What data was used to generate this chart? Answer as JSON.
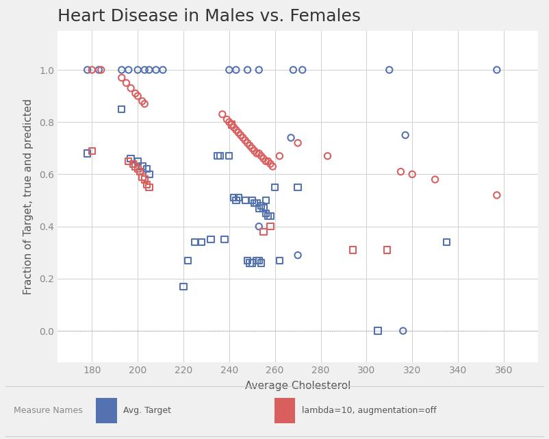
{
  "title": "Heart Disease in Males vs. Females",
  "xlabel": "Average Cholesterol",
  "ylabel": "Fraction of Target, true and predicted",
  "xlim": [
    165,
    375
  ],
  "ylim": [
    -0.12,
    1.15
  ],
  "xticks": [
    180,
    200,
    220,
    240,
    260,
    280,
    300,
    320,
    340,
    360
  ],
  "yticks": [
    0.0,
    0.2,
    0.4,
    0.6,
    0.8,
    1.0
  ],
  "bg_color": "#f0f0f0",
  "plot_bg_color": "#ffffff",
  "blue_color": "#5572b0",
  "red_color": "#d95f5f",
  "blue_circles": [
    [
      178,
      1.0
    ],
    [
      183,
      1.0
    ],
    [
      193,
      1.0
    ],
    [
      196,
      1.0
    ],
    [
      200,
      1.0
    ],
    [
      203,
      1.0
    ],
    [
      205,
      1.0
    ],
    [
      208,
      1.0
    ],
    [
      211,
      1.0
    ],
    [
      240,
      1.0
    ],
    [
      243,
      1.0
    ],
    [
      248,
      1.0
    ],
    [
      253,
      1.0
    ],
    [
      268,
      1.0
    ],
    [
      272,
      1.0
    ],
    [
      310,
      1.0
    ],
    [
      357,
      1.0
    ],
    [
      267,
      0.74
    ],
    [
      317,
      0.75
    ],
    [
      253,
      0.4
    ],
    [
      270,
      0.29
    ],
    [
      316,
      0.0
    ]
  ],
  "blue_squares": [
    [
      178,
      0.68
    ],
    [
      193,
      0.85
    ],
    [
      197,
      0.66
    ],
    [
      200,
      0.65
    ],
    [
      202,
      0.63
    ],
    [
      204,
      0.62
    ],
    [
      205,
      0.6
    ],
    [
      220,
      0.17
    ],
    [
      222,
      0.27
    ],
    [
      225,
      0.34
    ],
    [
      228,
      0.34
    ],
    [
      232,
      0.35
    ],
    [
      235,
      0.67
    ],
    [
      236,
      0.67
    ],
    [
      238,
      0.35
    ],
    [
      240,
      0.67
    ],
    [
      242,
      0.51
    ],
    [
      243,
      0.5
    ],
    [
      244,
      0.51
    ],
    [
      247,
      0.5
    ],
    [
      248,
      0.27
    ],
    [
      249,
      0.26
    ],
    [
      250,
      0.26
    ],
    [
      250,
      0.5
    ],
    [
      251,
      0.49
    ],
    [
      252,
      0.49
    ],
    [
      252,
      0.27
    ],
    [
      253,
      0.27
    ],
    [
      254,
      0.26
    ],
    [
      253,
      0.47
    ],
    [
      254,
      0.48
    ],
    [
      255,
      0.47
    ],
    [
      256,
      0.5
    ],
    [
      256,
      0.45
    ],
    [
      257,
      0.44
    ],
    [
      258,
      0.44
    ],
    [
      260,
      0.55
    ],
    [
      262,
      0.27
    ],
    [
      270,
      0.55
    ],
    [
      305,
      0.0
    ],
    [
      335,
      0.34
    ]
  ],
  "red_circles": [
    [
      180,
      1.0
    ],
    [
      184,
      1.0
    ],
    [
      193,
      0.97
    ],
    [
      195,
      0.95
    ],
    [
      197,
      0.93
    ],
    [
      199,
      0.91
    ],
    [
      200,
      0.9
    ],
    [
      202,
      0.88
    ],
    [
      203,
      0.87
    ],
    [
      237,
      0.83
    ],
    [
      239,
      0.81
    ],
    [
      240,
      0.8
    ],
    [
      241,
      0.79
    ],
    [
      242,
      0.78
    ],
    [
      243,
      0.77
    ],
    [
      244,
      0.76
    ],
    [
      245,
      0.75
    ],
    [
      246,
      0.74
    ],
    [
      247,
      0.73
    ],
    [
      248,
      0.72
    ],
    [
      249,
      0.71
    ],
    [
      250,
      0.7
    ],
    [
      251,
      0.69
    ],
    [
      252,
      0.68
    ],
    [
      253,
      0.68
    ],
    [
      254,
      0.67
    ],
    [
      255,
      0.66
    ],
    [
      256,
      0.65
    ],
    [
      257,
      0.65
    ],
    [
      258,
      0.64
    ],
    [
      259,
      0.63
    ],
    [
      262,
      0.67
    ],
    [
      270,
      0.72
    ],
    [
      283,
      0.67
    ],
    [
      315,
      0.61
    ],
    [
      320,
      0.6
    ],
    [
      330,
      0.58
    ],
    [
      357,
      0.52
    ]
  ],
  "red_squares": [
    [
      180,
      0.69
    ],
    [
      196,
      0.65
    ],
    [
      198,
      0.64
    ],
    [
      199,
      0.63
    ],
    [
      200,
      0.62
    ],
    [
      201,
      0.61
    ],
    [
      202,
      0.59
    ],
    [
      203,
      0.58
    ],
    [
      204,
      0.56
    ],
    [
      205,
      0.55
    ],
    [
      241,
      0.79
    ],
    [
      255,
      0.38
    ],
    [
      258,
      0.4
    ],
    [
      294,
      0.31
    ],
    [
      309,
      0.31
    ]
  ],
  "legend_labels": [
    "Avg. Target",
    "lambda=10, augmentation=off"
  ],
  "title_fontsize": 18,
  "label_fontsize": 11,
  "tick_fontsize": 10
}
